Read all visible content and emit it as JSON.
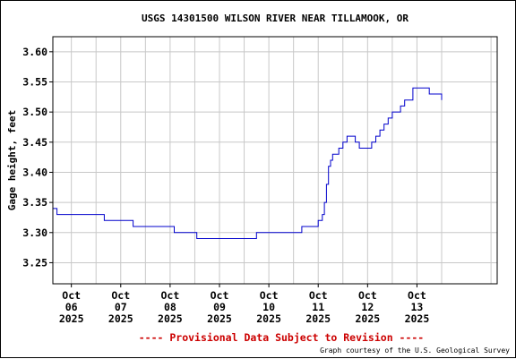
{
  "chart_data": {
    "type": "line",
    "title": "USGS 14301500 WILSON RIVER NEAR TILLAMOOK, OR",
    "ylabel": "Gage height, feet",
    "xlabel": "",
    "ylim": [
      3.215,
      3.625
    ],
    "y_ticks": [
      "3.25",
      "3.30",
      "3.35",
      "3.40",
      "3.45",
      "3.50",
      "3.55",
      "3.60"
    ],
    "x_ticks": [
      {
        "date": "2025-10-06",
        "lines": [
          "Oct",
          "06",
          "2025"
        ]
      },
      {
        "date": "2025-10-07",
        "lines": [
          "Oct",
          "07",
          "2025"
        ]
      },
      {
        "date": "2025-10-08",
        "lines": [
          "Oct",
          "08",
          "2025"
        ]
      },
      {
        "date": "2025-10-09",
        "lines": [
          "Oct",
          "09",
          "2025"
        ]
      },
      {
        "date": "2025-10-10",
        "lines": [
          "Oct",
          "10",
          "2025"
        ]
      },
      {
        "date": "2025-10-11",
        "lines": [
          "Oct",
          "11",
          "2025"
        ]
      },
      {
        "date": "2025-10-12",
        "lines": [
          "Oct",
          "12",
          "2025"
        ]
      },
      {
        "date": "2025-10-13",
        "lines": [
          "Oct",
          "13",
          "2025"
        ]
      }
    ],
    "xlim": [
      "2025-10-05T15:00",
      "2025-10-14T15:00"
    ],
    "grid": true,
    "series": [
      {
        "color": "#0000cc",
        "x": [
          "2025-10-05T15:00",
          "2025-10-05T16:00",
          "2025-10-05T17:00",
          "2025-10-05T18:00",
          "2025-10-05T20:00",
          "2025-10-06T04:00",
          "2025-10-06T06:00",
          "2025-10-06T08:00",
          "2025-10-06T10:00",
          "2025-10-06T12:00",
          "2025-10-06T16:00",
          "2025-10-06T18:00",
          "2025-10-07T00:00",
          "2025-10-07T06:00",
          "2025-10-07T12:00",
          "2025-10-07T16:00",
          "2025-10-07T18:00",
          "2025-10-07T20:00",
          "2025-10-07T23:00",
          "2025-10-08T02:00",
          "2025-10-08T06:00",
          "2025-10-08T08:00",
          "2025-10-08T10:00",
          "2025-10-08T13:00",
          "2025-10-08T16:00",
          "2025-10-08T20:00",
          "2025-10-09T00:00",
          "2025-10-09T06:00",
          "2025-10-09T12:00",
          "2025-10-09T18:00",
          "2025-10-10T00:00",
          "2025-10-10T06:00",
          "2025-10-10T12:00",
          "2025-10-10T16:00",
          "2025-10-10T20:00",
          "2025-10-11T00:00",
          "2025-10-11T02:00",
          "2025-10-11T03:00",
          "2025-10-11T04:00",
          "2025-10-11T05:00",
          "2025-10-11T06:00",
          "2025-10-11T07:00",
          "2025-10-11T08:00",
          "2025-10-11T10:00",
          "2025-10-11T12:00",
          "2025-10-11T14:00",
          "2025-10-11T16:00",
          "2025-10-11T18:00",
          "2025-10-11T20:00",
          "2025-10-12T00:00",
          "2025-10-12T02:00",
          "2025-10-12T04:00",
          "2025-10-12T06:00",
          "2025-10-12T08:00",
          "2025-10-12T10:00",
          "2025-10-12T12:00",
          "2025-10-12T14:00",
          "2025-10-12T16:00",
          "2025-10-12T18:00",
          "2025-10-12T22:00",
          "2025-10-13T00:00",
          "2025-10-13T02:00",
          "2025-10-13T04:00",
          "2025-10-13T06:00",
          "2025-10-13T08:00",
          "2025-10-13T10:00",
          "2025-10-13T12:00"
        ],
        "y": [
          3.34,
          3.34,
          3.33,
          3.33,
          3.33,
          3.33,
          3.33,
          3.33,
          3.33,
          3.33,
          3.32,
          3.32,
          3.32,
          3.31,
          3.31,
          3.31,
          3.31,
          3.31,
          3.31,
          3.3,
          3.3,
          3.3,
          3.3,
          3.29,
          3.29,
          3.29,
          3.29,
          3.29,
          3.29,
          3.3,
          3.3,
          3.3,
          3.3,
          3.31,
          3.31,
          3.32,
          3.33,
          3.35,
          3.38,
          3.41,
          3.42,
          3.43,
          3.43,
          3.44,
          3.45,
          3.46,
          3.46,
          3.45,
          3.44,
          3.44,
          3.45,
          3.46,
          3.47,
          3.48,
          3.49,
          3.5,
          3.5,
          3.51,
          3.52,
          3.54,
          3.54,
          3.54,
          3.54,
          3.53,
          3.53,
          3.53,
          3.52
        ]
      }
    ]
  },
  "footer": {
    "provisional": "---- Provisional Data Subject to Revision ----",
    "courtesy": "Graph courtesy of the U.S. Geological Survey"
  },
  "colors": {
    "line": "#0000cc",
    "grid": "#c8c8c8",
    "provisional": "#cc0000"
  }
}
